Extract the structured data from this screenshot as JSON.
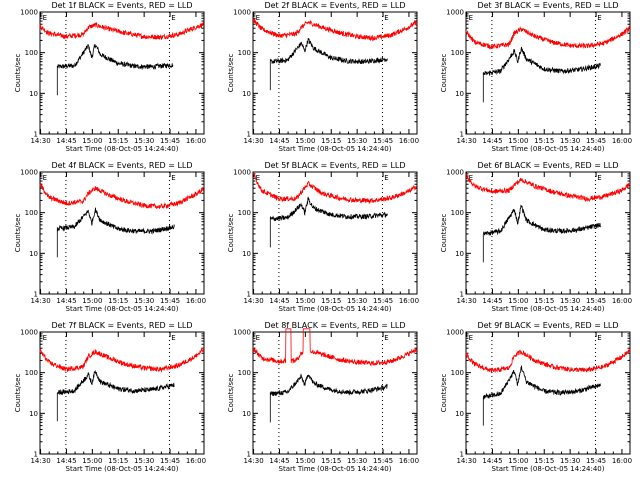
{
  "figure": {
    "title_suffix": "BLACK = Events, RED = LLD",
    "xlabel": "Start Time (08-Oct-05 14:24:40)",
    "ylabel": "Counts/sec",
    "x_ticks": [
      "14:30",
      "14:45",
      "15:00",
      "15:15",
      "15:30",
      "15:45",
      "16:00"
    ],
    "y_ticks": [
      "1",
      "10",
      "100",
      "1000"
    ],
    "marker_letters": [
      "E",
      "E"
    ],
    "colors": {
      "events": "#000000",
      "lld": "#ff0000",
      "axes": "#000000"
    }
  },
  "chart_data": [
    {
      "type": "line",
      "title": "Det 1f BLACK = Events, RED = LLD",
      "xlabel": "Start Time (08-Oct-05 14:24:40)",
      "ylabel": "Counts/sec",
      "x_range_min": [
        5,
        100
      ],
      "yscale": "log",
      "ylim": [
        1,
        1000
      ],
      "dashed_markers_min": [
        20,
        80
      ],
      "series": [
        {
          "name": "Events",
          "color": "#000000",
          "start_min": 15,
          "end_min": 82,
          "peak1_min": 33,
          "peak2_min": 37,
          "x": [
            15,
            25,
            33,
            35,
            37,
            40,
            50,
            60,
            70,
            82
          ],
          "y": [
            45,
            48,
            150,
            75,
            160,
            90,
            55,
            46,
            45,
            50
          ]
        },
        {
          "name": "LLD",
          "color": "#ff0000",
          "start_min": 5,
          "end_min": 100,
          "x": [
            5,
            10,
            20,
            30,
            33,
            37,
            45,
            55,
            65,
            75,
            85,
            95,
            100
          ],
          "y": [
            450,
            300,
            250,
            280,
            420,
            480,
            380,
            300,
            250,
            240,
            280,
            420,
            500
          ]
        }
      ]
    },
    {
      "type": "line",
      "title": "Det 2f BLACK = Events, RED = LLD",
      "xlabel": "Start Time (08-Oct-05 14:24:40)",
      "ylabel": "Counts/sec",
      "x_range_min": [
        5,
        100
      ],
      "yscale": "log",
      "ylim": [
        1,
        1000
      ],
      "dashed_markers_min": [
        20,
        80
      ],
      "series": [
        {
          "name": "Events",
          "color": "#000000",
          "start_min": 15,
          "end_min": 83,
          "peak1_min": 33,
          "peak2_min": 37,
          "x": [
            15,
            25,
            33,
            35,
            37,
            40,
            50,
            60,
            70,
            83
          ],
          "y": [
            60,
            65,
            170,
            110,
            210,
            130,
            75,
            62,
            60,
            70
          ]
        },
        {
          "name": "LLD",
          "color": "#ff0000",
          "start_min": 5,
          "end_min": 100,
          "x": [
            5,
            10,
            20,
            30,
            33,
            37,
            45,
            55,
            65,
            75,
            85,
            95,
            100
          ],
          "y": [
            650,
            380,
            260,
            290,
            420,
            560,
            420,
            310,
            250,
            230,
            270,
            420,
            560
          ]
        }
      ]
    },
    {
      "type": "line",
      "title": "Det 3f BLACK = Events, RED = LLD",
      "xlabel": "Start Time (08-Oct-05 14:24:40)",
      "ylabel": "Counts/sec",
      "x_range_min": [
        5,
        100
      ],
      "yscale": "log",
      "ylim": [
        1,
        1000
      ],
      "dashed_markers_min": [
        20,
        80
      ],
      "series": [
        {
          "name": "Events",
          "color": "#000000",
          "start_min": 15,
          "end_min": 83,
          "peak1_min": 33,
          "peak2_min": 37,
          "x": [
            15,
            25,
            33,
            35,
            37,
            40,
            50,
            60,
            70,
            83
          ],
          "y": [
            30,
            35,
            110,
            60,
            130,
            70,
            40,
            35,
            38,
            48
          ]
        },
        {
          "name": "LLD",
          "color": "#ff0000",
          "start_min": 5,
          "end_min": 100,
          "x": [
            5,
            10,
            20,
            30,
            33,
            37,
            45,
            55,
            65,
            75,
            85,
            95,
            100
          ],
          "y": [
            330,
            180,
            140,
            160,
            300,
            380,
            250,
            180,
            150,
            145,
            170,
            280,
            400
          ]
        }
      ]
    },
    {
      "type": "line",
      "title": "Det 4f BLACK = Events, RED = LLD",
      "xlabel": "Start Time (08-Oct-05 14:24:40)",
      "ylabel": "Counts/sec",
      "x_range_min": [
        5,
        100
      ],
      "yscale": "log",
      "ylim": [
        1,
        1000
      ],
      "dashed_markers_min": [
        20,
        80
      ],
      "series": [
        {
          "name": "Events",
          "color": "#000000",
          "start_min": 15,
          "end_min": 83,
          "peak1_min": 33,
          "peak2_min": 37,
          "x": [
            15,
            25,
            33,
            35,
            37,
            40,
            50,
            60,
            70,
            83
          ],
          "y": [
            40,
            45,
            110,
            55,
            120,
            65,
            40,
            35,
            35,
            45
          ]
        },
        {
          "name": "LLD",
          "color": "#ff0000",
          "start_min": 5,
          "end_min": 100,
          "x": [
            5,
            10,
            20,
            30,
            33,
            37,
            45,
            55,
            65,
            75,
            85,
            95,
            100
          ],
          "y": [
            500,
            240,
            170,
            190,
            300,
            400,
            270,
            190,
            150,
            140,
            170,
            280,
            380
          ]
        }
      ]
    },
    {
      "type": "line",
      "title": "Det 5f BLACK = Events, RED = LLD",
      "xlabel": "Start Time (08-Oct-05 14:24:40)",
      "ylabel": "Counts/sec",
      "x_range_min": [
        5,
        100
      ],
      "yscale": "log",
      "ylim": [
        1,
        1000
      ],
      "dashed_markers_min": [
        20,
        80
      ],
      "series": [
        {
          "name": "Events",
          "color": "#000000",
          "start_min": 15,
          "end_min": 83,
          "peak1_min": 33,
          "peak2_min": 37,
          "x": [
            15,
            25,
            33,
            35,
            37,
            40,
            50,
            60,
            70,
            83
          ],
          "y": [
            70,
            75,
            160,
            100,
            220,
            130,
            90,
            80,
            80,
            90
          ]
        },
        {
          "name": "LLD",
          "color": "#ff0000",
          "start_min": 5,
          "end_min": 100,
          "x": [
            5,
            10,
            20,
            30,
            33,
            37,
            45,
            55,
            65,
            75,
            85,
            95,
            100
          ],
          "y": [
            900,
            350,
            220,
            220,
            320,
            520,
            300,
            230,
            200,
            200,
            230,
            330,
            450
          ]
        }
      ]
    },
    {
      "type": "line",
      "title": "Det 6f BLACK = Events, RED = LLD",
      "xlabel": "Start Time (08-Oct-05 14:24:40)",
      "ylabel": "Counts/sec",
      "x_range_min": [
        5,
        100
      ],
      "yscale": "log",
      "ylim": [
        1,
        1000
      ],
      "dashed_markers_min": [
        20,
        80
      ],
      "series": [
        {
          "name": "Events",
          "color": "#000000",
          "start_min": 15,
          "end_min": 83,
          "peak1_min": 33,
          "peak2_min": 37,
          "x": [
            15,
            25,
            33,
            35,
            37,
            40,
            50,
            60,
            70,
            83
          ],
          "y": [
            30,
            35,
            120,
            55,
            150,
            65,
            38,
            35,
            38,
            50
          ]
        },
        {
          "name": "LLD",
          "color": "#ff0000",
          "start_min": 5,
          "end_min": 100,
          "x": [
            5,
            10,
            20,
            30,
            33,
            37,
            45,
            55,
            65,
            75,
            85,
            95,
            100
          ],
          "y": [
            800,
            450,
            330,
            350,
            480,
            650,
            450,
            330,
            260,
            220,
            250,
            350,
            500
          ]
        }
      ]
    },
    {
      "type": "line",
      "title": "Det 7f BLACK = Events, RED = LLD",
      "xlabel": "Start Time (08-Oct-05 14:24:40)",
      "ylabel": "Counts/sec",
      "x_range_min": [
        5,
        100
      ],
      "yscale": "log",
      "ylim": [
        1,
        1000
      ],
      "dashed_markers_min": [
        20,
        80
      ],
      "series": [
        {
          "name": "Events",
          "color": "#000000",
          "start_min": 15,
          "end_min": 83,
          "peak1_min": 33,
          "peak2_min": 37,
          "x": [
            15,
            25,
            33,
            35,
            37,
            40,
            50,
            60,
            70,
            83
          ],
          "y": [
            32,
            36,
            90,
            55,
            110,
            60,
            40,
            36,
            38,
            50
          ]
        },
        {
          "name": "LLD",
          "color": "#ff0000",
          "start_min": 5,
          "end_min": 100,
          "x": [
            5,
            10,
            20,
            30,
            33,
            37,
            45,
            55,
            65,
            75,
            85,
            95,
            100
          ],
          "y": [
            350,
            180,
            120,
            140,
            250,
            330,
            230,
            160,
            130,
            120,
            150,
            250,
            380
          ]
        }
      ]
    },
    {
      "type": "line",
      "title": "Det 8f BLACK = Events, RED = LLD",
      "xlabel": "Start Time (08-Oct-05 14:24:40)",
      "ylabel": "Counts/sec",
      "x_range_min": [
        5,
        100
      ],
      "yscale": "log",
      "ylim": [
        1,
        1000
      ],
      "dashed_markers_min": [
        20,
        80
      ],
      "series": [
        {
          "name": "Events",
          "color": "#000000",
          "start_min": 15,
          "end_min": 83,
          "peak1_min": 33,
          "peak2_min": 37,
          "x": [
            15,
            25,
            33,
            35,
            37,
            40,
            50,
            60,
            70,
            83
          ],
          "y": [
            30,
            33,
            80,
            50,
            95,
            55,
            38,
            33,
            35,
            45
          ]
        },
        {
          "name": "LLD",
          "color": "#ff0000",
          "start_min": 5,
          "end_min": 100,
          "x": [
            5,
            10,
            20,
            30,
            33,
            37,
            45,
            55,
            65,
            75,
            85,
            95,
            100
          ],
          "y": [
            400,
            230,
            190,
            200,
            300,
            350,
            280,
            210,
            180,
            170,
            190,
            290,
            380
          ],
          "saturated_ranges_min": [
            [
              24,
              27
            ],
            [
              34,
              38
            ]
          ]
        }
      ]
    },
    {
      "type": "line",
      "title": "Det 9f BLACK = Events, RED = LLD",
      "xlabel": "Start Time (08-Oct-05 14:24:40)",
      "ylabel": "Counts/sec",
      "x_range_min": [
        5,
        100
      ],
      "yscale": "log",
      "ylim": [
        1,
        1000
      ],
      "dashed_markers_min": [
        20,
        80
      ],
      "series": [
        {
          "name": "Events",
          "color": "#000000",
          "start_min": 15,
          "end_min": 83,
          "peak1_min": 33,
          "peak2_min": 37,
          "x": [
            15,
            25,
            33,
            35,
            37,
            40,
            50,
            60,
            70,
            83
          ],
          "y": [
            25,
            30,
            110,
            50,
            140,
            60,
            35,
            32,
            35,
            50
          ]
        },
        {
          "name": "LLD",
          "color": "#ff0000",
          "start_min": 5,
          "end_min": 100,
          "x": [
            5,
            10,
            20,
            30,
            33,
            37,
            45,
            55,
            65,
            75,
            85,
            95,
            100
          ],
          "y": [
            280,
            160,
            110,
            130,
            260,
            330,
            200,
            140,
            120,
            115,
            140,
            240,
            350
          ]
        }
      ]
    }
  ]
}
